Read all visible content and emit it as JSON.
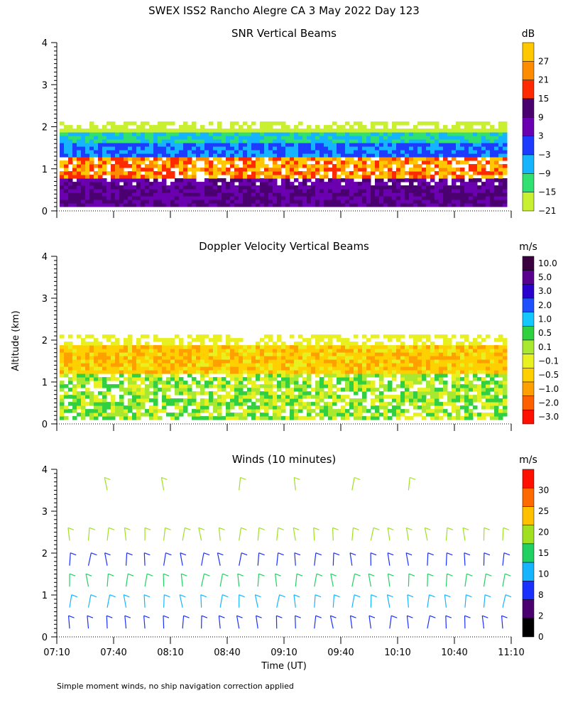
{
  "title": "SWEX ISS2 Rancho Alegre CA    3 May 2022 Day 123",
  "y_axis_label": "Altitude (km)",
  "x_axis_label": "Time (UT)",
  "footnote": "Simple moment winds, no ship navigation correction applied",
  "time_ticks": [
    "07:10",
    "07:40",
    "08:10",
    "08:40",
    "09:10",
    "09:40",
    "10:10",
    "10:40",
    "11:10"
  ],
  "panels": [
    {
      "title": "SNR Vertical Beams",
      "unit": "dB",
      "colorbar_labels": [
        "27",
        "21",
        "15",
        "9",
        "3",
        "−3",
        "−9",
        "−15",
        "−21"
      ],
      "colorbar_colors": [
        "#ffc800",
        "#ff8c00",
        "#ff2a00",
        "#4b0070",
        "#6a00b0",
        "#1e3cff",
        "#14b4ff",
        "#30e070",
        "#c8f030"
      ]
    },
    {
      "title": "Doppler Velocity Vertical Beams",
      "unit": "m/s",
      "colorbar_labels": [
        "10.0",
        "5.0",
        "3.0",
        "2.0",
        "1.0",
        "0.5",
        "0.1",
        "−0.1",
        "−0.5",
        "−1.0",
        "−2.0",
        "−3.0"
      ],
      "colorbar_colors": [
        "#3a0040",
        "#5a0090",
        "#2a00cc",
        "#1e50ff",
        "#14c8ff",
        "#30d040",
        "#a8e830",
        "#e8f020",
        "#ffd000",
        "#ffa000",
        "#ff6000",
        "#ff1000"
      ]
    },
    {
      "title": "Winds (10 minutes)",
      "unit": "m/s",
      "colorbar_labels": [
        "30",
        "25",
        "20",
        "15",
        "10",
        "8",
        "2",
        "0"
      ],
      "colorbar_colors": [
        "#ff1000",
        "#ff6a00",
        "#ffc000",
        "#a0e020",
        "#20d060",
        "#14b4ff",
        "#1a30ff",
        "#4b0070",
        "#000000"
      ]
    }
  ],
  "chart_data": [
    {
      "type": "heatmap",
      "title": "SNR Vertical Beams",
      "x_range": [
        "07:10",
        "11:10"
      ],
      "ylim": [
        0,
        4
      ],
      "yticks": [
        0,
        1,
        2,
        3,
        4
      ],
      "colorbar_unit": "dB",
      "colorbar_levels": [
        27,
        21,
        15,
        9,
        3,
        -3,
        -9,
        -15,
        -21
      ],
      "bands": [
        {
          "altitude_km": [
            0.1,
            0.7
          ],
          "value_db": 9
        },
        {
          "altitude_km": [
            0.7,
            1.4
          ],
          "value_db": 21
        },
        {
          "altitude_km": [
            1.3,
            1.6
          ],
          "value_db": -3
        },
        {
          "altitude_km": [
            1.6,
            1.85
          ],
          "value_db": -15
        },
        {
          "altitude_km": [
            1.85,
            2.1
          ],
          "value_db": -21
        }
      ]
    },
    {
      "type": "heatmap",
      "title": "Doppler Velocity Vertical Beams",
      "x_range": [
        "07:10",
        "11:10"
      ],
      "ylim": [
        0,
        4
      ],
      "yticks": [
        0,
        1,
        2,
        3,
        4
      ],
      "colorbar_unit": "m/s",
      "colorbar_levels": [
        10.0,
        5.0,
        3.0,
        2.0,
        1.0,
        0.5,
        0.1,
        -0.1,
        -0.5,
        -1.0,
        -2.0,
        -3.0
      ],
      "bands": [
        {
          "altitude_km": [
            0.1,
            1.2
          ],
          "value_ms": -0.1
        },
        {
          "altitude_km": [
            1.2,
            1.8
          ],
          "value_ms": -0.5
        },
        {
          "altitude_km": [
            1.8,
            2.0
          ],
          "value_ms": -0.1
        }
      ]
    },
    {
      "type": "scatter",
      "title": "Winds (10 minutes)",
      "x_range": [
        "07:10",
        "11:10"
      ],
      "ylim": [
        0,
        4
      ],
      "yticks": [
        0,
        1,
        2,
        3,
        4
      ],
      "colorbar_unit": "m/s",
      "colorbar_levels": [
        30,
        25,
        20,
        15,
        10,
        8,
        2,
        0
      ],
      "wind_profile": [
        {
          "altitude_km": 0.2,
          "speed_ms": 4
        },
        {
          "altitude_km": 0.7,
          "speed_ms": 8
        },
        {
          "altitude_km": 1.2,
          "speed_ms": 10
        },
        {
          "altitude_km": 1.7,
          "speed_ms": 6
        },
        {
          "altitude_km": 2.3,
          "speed_ms": 15
        },
        {
          "altitude_km": 3.5,
          "speed_ms": 15
        }
      ]
    }
  ]
}
